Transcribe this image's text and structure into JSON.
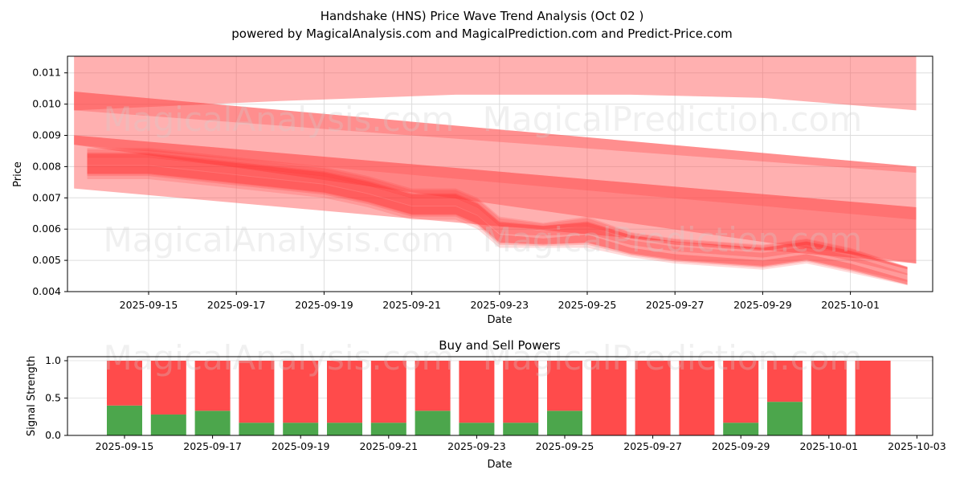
{
  "chart_data": [
    {
      "type": "area",
      "title": "Handshake (HNS) Price Wave Trend Analysis (Oct 02 )",
      "subtitle": "powered by MagicalAnalysis.com and MagicalPrediction.com and Predict-Price.com",
      "xlabel": "Date",
      "ylabel": "Price",
      "ylim": [
        0.004,
        0.0116
      ],
      "yticks": [
        "0.004",
        "0.005",
        "0.006",
        "0.007",
        "0.008",
        "0.009",
        "0.010",
        "0.011"
      ],
      "xticks": [
        "2025-09-15",
        "2025-09-17",
        "2025-09-19",
        "2025-09-21",
        "2025-09-23",
        "2025-09-25",
        "2025-09-27",
        "2025-09-29",
        "2025-10-01"
      ],
      "grid": true,
      "bands": [
        {
          "name": "upper-wave-band",
          "x": [
            13.3,
            18,
            22,
            26,
            29,
            32.5
          ],
          "lower": [
            0.0098,
            0.0101,
            0.0103,
            0.0103,
            0.0102,
            0.0098
          ],
          "upper": [
            0.0125,
            0.0125,
            0.0125,
            0.0125,
            0.0125,
            0.0116
          ]
        },
        {
          "name": "middle-wave-band",
          "x": [
            13.3,
            32.5
          ],
          "lower": [
            0.0087,
            0.0049
          ],
          "upper": [
            0.0104,
            0.008
          ]
        },
        {
          "name": "middle-wave-line",
          "x": [
            13.3,
            32.5
          ],
          "lower": [
            0.0098,
            0.0078
          ],
          "upper": [
            0.0104,
            0.008
          ]
        },
        {
          "name": "lower-wave-band",
          "x": [
            13.3,
            32.5
          ],
          "lower": [
            0.0073,
            0.0049
          ],
          "upper": [
            0.009,
            0.0067
          ]
        },
        {
          "name": "lower-wave-line",
          "x": [
            13.3,
            32.5
          ],
          "lower": [
            0.0087,
            0.0063
          ],
          "upper": [
            0.009,
            0.0067
          ]
        }
      ],
      "wave": {
        "x": [
          13.6,
          15,
          17,
          19,
          20,
          21,
          22,
          22.5,
          23,
          24,
          25,
          26,
          27,
          28,
          29,
          30,
          31,
          32.3
        ],
        "center": [
          0.0081,
          0.0081,
          0.0078,
          0.0075,
          0.0072,
          0.0068,
          0.0068,
          0.0065,
          0.0059,
          0.0058,
          0.0059,
          0.0055,
          0.0053,
          0.0052,
          0.0051,
          0.0053,
          0.005,
          0.0045
        ],
        "spread": [
          0.0005,
          0.0005,
          0.0005,
          0.0005,
          0.0005,
          0.0005,
          0.0005,
          0.0005,
          0.0005,
          0.0004,
          0.0005,
          0.0004,
          0.0004,
          0.0004,
          0.0004,
          0.0004,
          0.0004,
          0.0003
        ]
      },
      "watermarks": [
        "MagicalAnalysis.com",
        "MagicalPrediction.com"
      ]
    },
    {
      "type": "bar",
      "title": "Buy and Sell Powers",
      "xlabel": "Date",
      "ylabel": "Signal Strength",
      "ylim": [
        0,
        1.05
      ],
      "yticks": [
        "0.0",
        "0.5",
        "1.0"
      ],
      "xticks": [
        "2025-09-15",
        "2025-09-17",
        "2025-09-19",
        "2025-09-21",
        "2025-09-23",
        "2025-09-25",
        "2025-09-27",
        "2025-09-29",
        "2025-10-01",
        "2025-10-03"
      ],
      "categories": [
        "2025-09-15",
        "2025-09-16",
        "2025-09-17",
        "2025-09-18",
        "2025-09-19",
        "2025-09-20",
        "2025-09-21",
        "2025-09-22",
        "2025-09-23",
        "2025-09-24",
        "2025-09-25",
        "2025-09-26",
        "2025-09-27",
        "2025-09-28",
        "2025-09-29",
        "2025-09-30",
        "2025-10-01",
        "2025-10-02"
      ],
      "series": [
        {
          "name": "Buy",
          "color": "#4ca64c",
          "values": [
            0.4,
            0.28,
            0.33,
            0.17,
            0.17,
            0.17,
            0.17,
            0.33,
            0.17,
            0.17,
            0.33,
            0,
            0,
            0,
            0.17,
            0.45,
            0,
            0
          ]
        },
        {
          "name": "Sell",
          "color": "#ff4b4b",
          "values": [
            0.6,
            0.72,
            0.67,
            0.83,
            0.83,
            0.83,
            0.83,
            0.67,
            0.83,
            0.83,
            0.67,
            1,
            1,
            1,
            0.83,
            0.55,
            1,
            1
          ]
        }
      ]
    }
  ]
}
